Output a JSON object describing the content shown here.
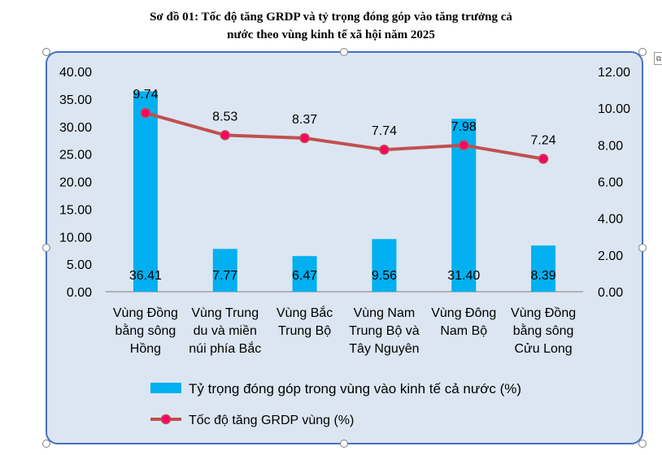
{
  "chart_data": {
    "type": "bar",
    "title_line1": "Sơ đồ 01: Tốc độ tăng GRDP và tỷ trọng đóng góp vào tăng trưởng cả",
    "title_line2": "nước theo vùng kinh tế xã hội năm 2025",
    "categories": [
      [
        "Vùng Đồng",
        "bằng sông",
        "Hồng"
      ],
      [
        "Vùng Trung",
        "du và miền",
        "núi phía Bắc"
      ],
      [
        "Vùng Bắc",
        "Trung Bộ"
      ],
      [
        "Vùng Nam",
        "Trung Bộ và",
        "Tây Nguyên"
      ],
      [
        "Vùng Đông",
        "Nam Bộ"
      ],
      [
        "Vùng Đồng",
        "bằng sông",
        "Cửu Long"
      ]
    ],
    "series": [
      {
        "name": "Tỷ trọng đóng góp trong vùng vào kinh tế cả nước (%)",
        "type": "bar",
        "axis": "left",
        "color": "#00B0F0",
        "values": [
          36.41,
          7.77,
          6.47,
          9.56,
          31.4,
          8.39
        ],
        "labels": [
          "36.41",
          "7.77",
          "6.47",
          "9.56",
          "31.40",
          "8.39"
        ]
      },
      {
        "name": "Tốc độ tăng GRDP vùng (%)",
        "type": "line",
        "axis": "right",
        "color": "#C0504D",
        "marker_color": "#FF0066",
        "values": [
          9.74,
          8.53,
          8.37,
          7.74,
          7.98,
          7.24
        ],
        "labels": [
          "9.74",
          "8.53",
          "8.37",
          "7.74",
          "7.98",
          "7.24"
        ]
      }
    ],
    "y_left": {
      "ylim": [
        0,
        40
      ],
      "ticks": [
        "0.00",
        "5.00",
        "10.00",
        "15.00",
        "20.00",
        "25.00",
        "30.00",
        "35.00",
        "40.00"
      ]
    },
    "y_right": {
      "ylim": [
        0,
        12
      ],
      "ticks": [
        "0.00",
        "2.00",
        "4.00",
        "6.00",
        "8.00",
        "10.00",
        "12.00"
      ]
    },
    "grid": false,
    "legend_position": "bottom",
    "plot_background": "#DCE6F2",
    "border_color": "#4472C4"
  }
}
